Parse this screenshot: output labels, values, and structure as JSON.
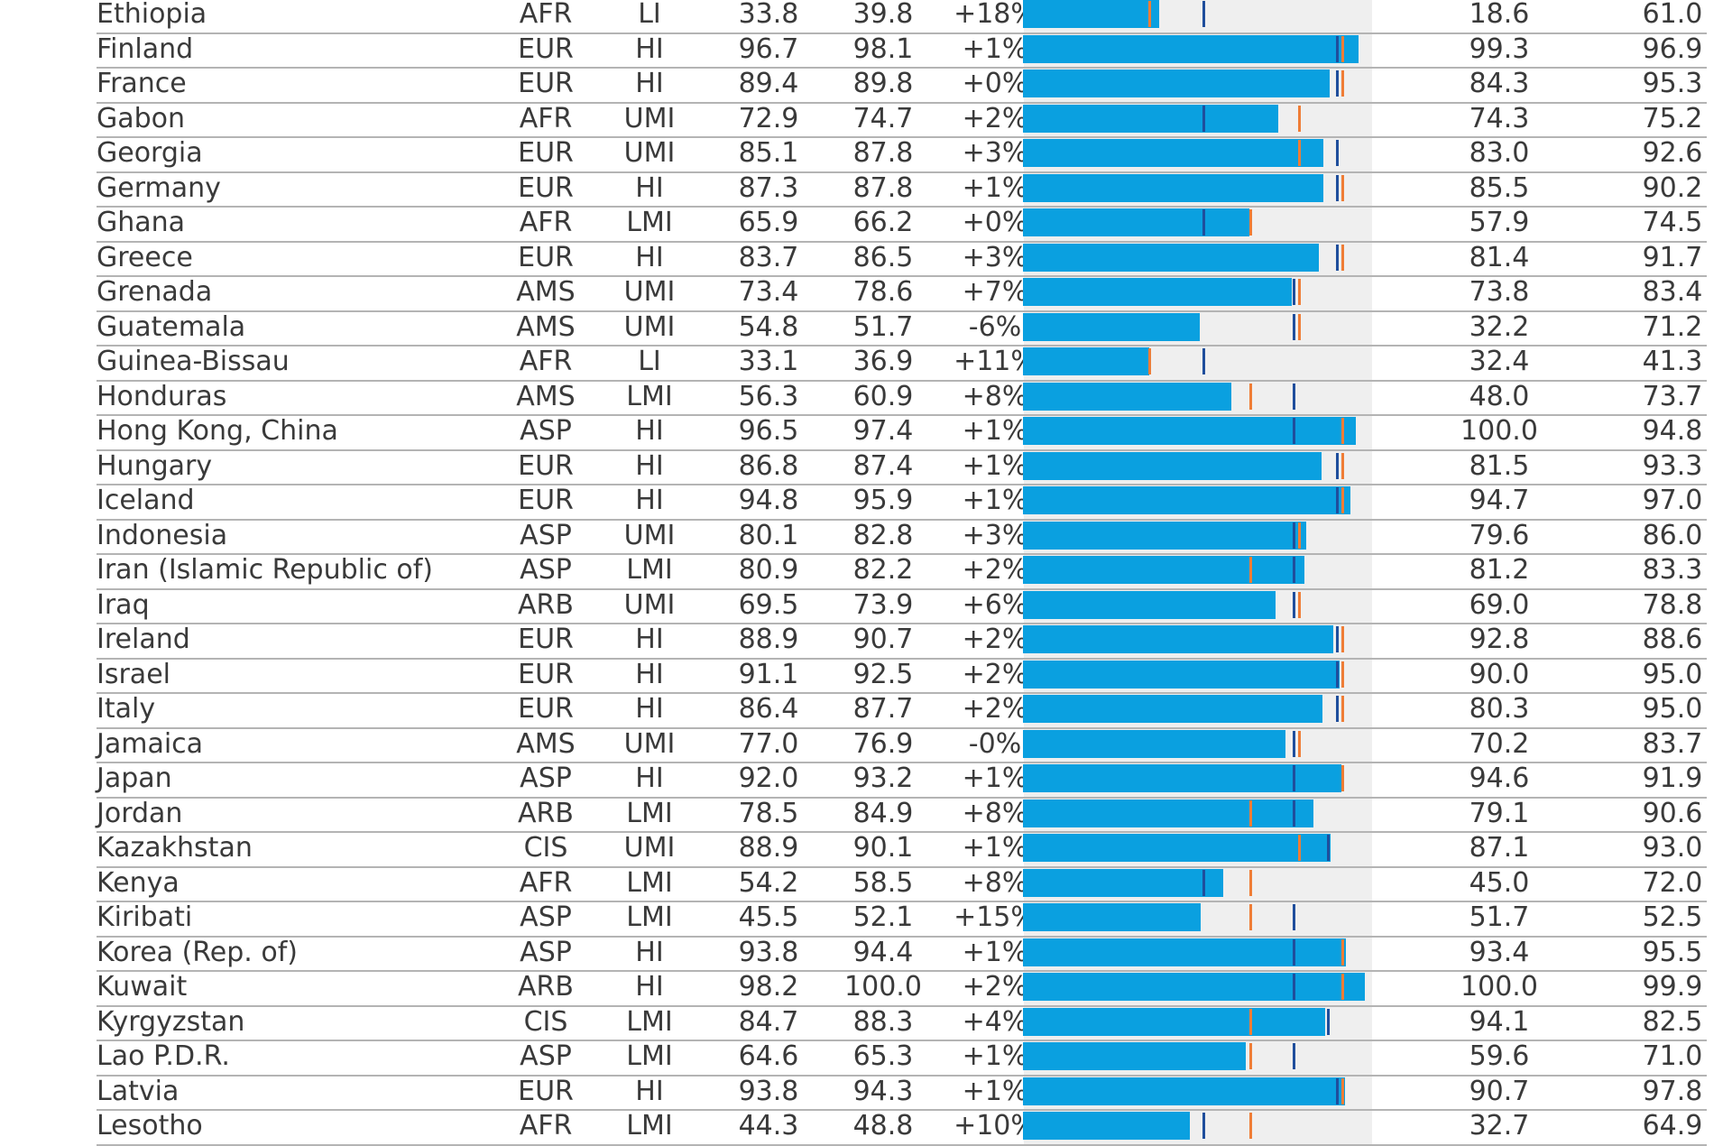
{
  "colors": {
    "bar": "#0aa0e0",
    "track": "#efefef",
    "marker_blue": "#1f4e9c",
    "marker_orange": "#ef7d36",
    "rule": "#b4b4b4"
  },
  "chart_data": {
    "type": "table",
    "x_range": [
      0,
      100
    ],
    "rows": [
      {
        "country": "Ethiopia",
        "region": "AFR",
        "income": "LI",
        "v2019": "33.8",
        "v2023": "39.8",
        "change": "+18%",
        "a": "18.6",
        "b": "61.0",
        "bar": 39.8,
        "blue": 52.4,
        "orange": 36.7
      },
      {
        "country": "Finland",
        "region": "EUR",
        "income": "HI",
        "v2019": "96.7",
        "v2023": "98.1",
        "change": "+1%",
        "a": "99.3",
        "b": "96.9",
        "bar": 98.1,
        "blue": 91.6,
        "orange": 93.1
      },
      {
        "country": "France",
        "region": "EUR",
        "income": "HI",
        "v2019": "89.4",
        "v2023": "89.8",
        "change": "+0%",
        "a": "84.3",
        "b": "95.3",
        "bar": 89.8,
        "blue": 91.6,
        "orange": 93.1
      },
      {
        "country": "Gabon",
        "region": "AFR",
        "income": "UMI",
        "v2019": "72.9",
        "v2023": "74.7",
        "change": "+2%",
        "a": "74.3",
        "b": "75.2",
        "bar": 74.7,
        "blue": 52.4,
        "orange": 80.5
      },
      {
        "country": "Georgia",
        "region": "EUR",
        "income": "UMI",
        "v2019": "85.1",
        "v2023": "87.8",
        "change": "+3%",
        "a": "83.0",
        "b": "92.6",
        "bar": 87.8,
        "blue": 91.6,
        "orange": 80.5
      },
      {
        "country": "Germany",
        "region": "EUR",
        "income": "HI",
        "v2019": "87.3",
        "v2023": "87.8",
        "change": "+1%",
        "a": "85.5",
        "b": "90.2",
        "bar": 87.8,
        "blue": 91.6,
        "orange": 93.1
      },
      {
        "country": "Ghana",
        "region": "AFR",
        "income": "LMI",
        "v2019": "65.9",
        "v2023": "66.2",
        "change": "+0%",
        "a": "57.9",
        "b": "74.5",
        "bar": 66.2,
        "blue": 52.4,
        "orange": 66.3
      },
      {
        "country": "Greece",
        "region": "EUR",
        "income": "HI",
        "v2019": "83.7",
        "v2023": "86.5",
        "change": "+3%",
        "a": "81.4",
        "b": "91.7",
        "bar": 86.5,
        "blue": 91.6,
        "orange": 93.1
      },
      {
        "country": "Grenada",
        "region": "AMS",
        "income": "UMI",
        "v2019": "73.4",
        "v2023": "78.6",
        "change": "+7%",
        "a": "73.8",
        "b": "83.4",
        "bar": 78.6,
        "blue": 78.8,
        "orange": 80.5
      },
      {
        "country": "Guatemala",
        "region": "AMS",
        "income": "UMI",
        "v2019": "54.8",
        "v2023": "51.7",
        "change": "-6%",
        "a": "32.2",
        "b": "71.2",
        "bar": 51.7,
        "blue": 78.8,
        "orange": 80.5
      },
      {
        "country": "Guinea-Bissau",
        "region": "AFR",
        "income": "LI",
        "v2019": "33.1",
        "v2023": "36.9",
        "change": "+11%",
        "a": "32.4",
        "b": "41.3",
        "bar": 36.9,
        "blue": 52.4,
        "orange": 36.7
      },
      {
        "country": "Honduras",
        "region": "AMS",
        "income": "LMI",
        "v2019": "56.3",
        "v2023": "60.9",
        "change": "+8%",
        "a": "48.0",
        "b": "73.7",
        "bar": 60.9,
        "blue": 78.8,
        "orange": 66.3
      },
      {
        "country": "Hong Kong, China",
        "region": "ASP",
        "income": "HI",
        "v2019": "96.5",
        "v2023": "97.4",
        "change": "+1%",
        "a": "100.0",
        "b": "94.8",
        "bar": 97.4,
        "blue": 78.8,
        "orange": 93.1
      },
      {
        "country": "Hungary",
        "region": "EUR",
        "income": "HI",
        "v2019": "86.8",
        "v2023": "87.4",
        "change": "+1%",
        "a": "81.5",
        "b": "93.3",
        "bar": 87.4,
        "blue": 91.6,
        "orange": 93.1
      },
      {
        "country": "Iceland",
        "region": "EUR",
        "income": "HI",
        "v2019": "94.8",
        "v2023": "95.9",
        "change": "+1%",
        "a": "94.7",
        "b": "97.0",
        "bar": 95.9,
        "blue": 91.6,
        "orange": 93.1
      },
      {
        "country": "Indonesia",
        "region": "ASP",
        "income": "UMI",
        "v2019": "80.1",
        "v2023": "82.8",
        "change": "+3%",
        "a": "79.6",
        "b": "86.0",
        "bar": 82.8,
        "blue": 78.8,
        "orange": 80.5
      },
      {
        "country": "Iran (Islamic Republic of)",
        "region": "ASP",
        "income": "LMI",
        "v2019": "80.9",
        "v2023": "82.2",
        "change": "+2%",
        "a": "81.2",
        "b": "83.3",
        "bar": 82.2,
        "blue": 78.8,
        "orange": 66.3
      },
      {
        "country": "Iraq",
        "region": "ARB",
        "income": "UMI",
        "v2019": "69.5",
        "v2023": "73.9",
        "change": "+6%",
        "a": "69.0",
        "b": "78.8",
        "bar": 73.9,
        "blue": 78.8,
        "orange": 80.5
      },
      {
        "country": "Ireland",
        "region": "EUR",
        "income": "HI",
        "v2019": "88.9",
        "v2023": "90.7",
        "change": "+2%",
        "a": "92.8",
        "b": "88.6",
        "bar": 90.7,
        "blue": 91.6,
        "orange": 93.1
      },
      {
        "country": "Israel",
        "region": "EUR",
        "income": "HI",
        "v2019": "91.1",
        "v2023": "92.5",
        "change": "+2%",
        "a": "90.0",
        "b": "95.0",
        "bar": 92.5,
        "blue": 91.6,
        "orange": 93.1
      },
      {
        "country": "Italy",
        "region": "EUR",
        "income": "HI",
        "v2019": "86.4",
        "v2023": "87.7",
        "change": "+2%",
        "a": "80.3",
        "b": "95.0",
        "bar": 87.7,
        "blue": 91.6,
        "orange": 93.1
      },
      {
        "country": "Jamaica",
        "region": "AMS",
        "income": "UMI",
        "v2019": "77.0",
        "v2023": "76.9",
        "change": "-0%",
        "a": "70.2",
        "b": "83.7",
        "bar": 76.9,
        "blue": 78.8,
        "orange": 80.5
      },
      {
        "country": "Japan",
        "region": "ASP",
        "income": "HI",
        "v2019": "92.0",
        "v2023": "93.2",
        "change": "+1%",
        "a": "94.6",
        "b": "91.9",
        "bar": 93.2,
        "blue": 78.8,
        "orange": 93.1
      },
      {
        "country": "Jordan",
        "region": "ARB",
        "income": "LMI",
        "v2019": "78.5",
        "v2023": "84.9",
        "change": "+8%",
        "a": "79.1",
        "b": "90.6",
        "bar": 84.9,
        "blue": 78.8,
        "orange": 66.3
      },
      {
        "country": "Kazakhstan",
        "region": "CIS",
        "income": "UMI",
        "v2019": "88.9",
        "v2023": "90.1",
        "change": "+1%",
        "a": "87.1",
        "b": "93.0",
        "bar": 90.1,
        "blue": 88.9,
        "orange": 80.5
      },
      {
        "country": "Kenya",
        "region": "AFR",
        "income": "LMI",
        "v2019": "54.2",
        "v2023": "58.5",
        "change": "+8%",
        "a": "45.0",
        "b": "72.0",
        "bar": 58.5,
        "blue": 52.4,
        "orange": 66.3
      },
      {
        "country": "Kiribati",
        "region": "ASP",
        "income": "LMI",
        "v2019": "45.5",
        "v2023": "52.1",
        "change": "+15%",
        "a": "51.7",
        "b": "52.5",
        "bar": 52.1,
        "blue": 78.8,
        "orange": 66.3
      },
      {
        "country": "Korea (Rep. of)",
        "region": "ASP",
        "income": "HI",
        "v2019": "93.8",
        "v2023": "94.4",
        "change": "+1%",
        "a": "93.4",
        "b": "95.5",
        "bar": 94.4,
        "blue": 78.8,
        "orange": 93.1
      },
      {
        "country": "Kuwait",
        "region": "ARB",
        "income": "HI",
        "v2019": "98.2",
        "v2023": "100.0",
        "change": "+2%",
        "a": "100.0",
        "b": "99.9",
        "bar": 100.0,
        "blue": 78.8,
        "orange": 93.1
      },
      {
        "country": "Kyrgyzstan",
        "region": "CIS",
        "income": "LMI",
        "v2019": "84.7",
        "v2023": "88.3",
        "change": "+4%",
        "a": "94.1",
        "b": "82.5",
        "bar": 88.3,
        "blue": 88.9,
        "orange": 66.3
      },
      {
        "country": "Lao P.D.R.",
        "region": "ASP",
        "income": "LMI",
        "v2019": "64.6",
        "v2023": "65.3",
        "change": "+1%",
        "a": "59.6",
        "b": "71.0",
        "bar": 65.3,
        "blue": 78.8,
        "orange": 66.3
      },
      {
        "country": "Latvia",
        "region": "EUR",
        "income": "HI",
        "v2019": "93.8",
        "v2023": "94.3",
        "change": "+1%",
        "a": "90.7",
        "b": "97.8",
        "bar": 94.3,
        "blue": 91.6,
        "orange": 93.1
      },
      {
        "country": "Lesotho",
        "region": "AFR",
        "income": "LMI",
        "v2019": "44.3",
        "v2023": "48.8",
        "change": "+10%",
        "a": "32.7",
        "b": "64.9",
        "bar": 48.8,
        "blue": 52.4,
        "orange": 66.3
      }
    ]
  }
}
